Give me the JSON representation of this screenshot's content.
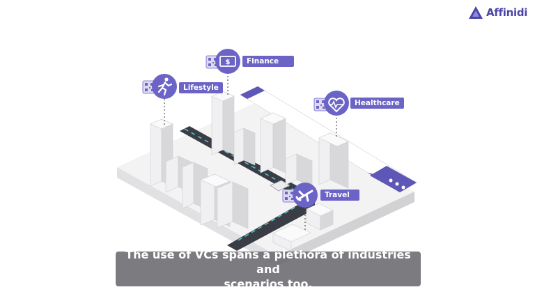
{
  "brand": {
    "name": "Affinidi",
    "color": "#4b45a8"
  },
  "screen_badge": "Affinidi",
  "categories": [
    {
      "label": "Finance",
      "icon": "money-icon"
    },
    {
      "label": "Lifestyle",
      "icon": "running-person-icon"
    },
    {
      "label": "Healthcare",
      "icon": "heart-pulse-icon"
    },
    {
      "label": "Travel",
      "icon": "airplane-icon"
    }
  ],
  "caption": {
    "line1": "The use of VCs spans a plethora of industries and",
    "line2": "scenarios too."
  },
  "colors": {
    "accent": "#6c63c7",
    "road": "#3a3d45",
    "road_dash": "#58c6c9",
    "building": "#dcdcde"
  }
}
